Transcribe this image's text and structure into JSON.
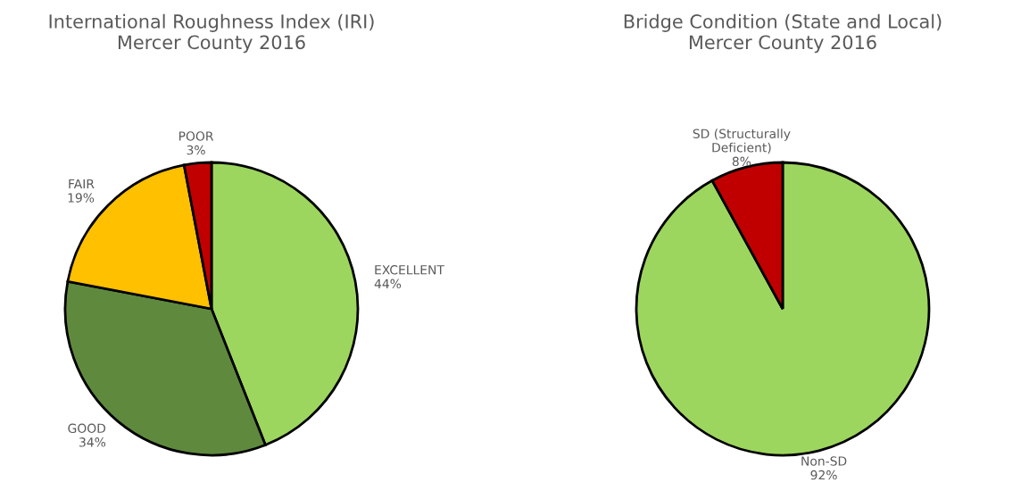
{
  "chart_data": [
    {
      "type": "pie",
      "title": "International Roughness Index (IRI)\nMercer County 2016",
      "categories": [
        "EXCELLENT",
        "GOOD",
        "FAIR",
        "POOR"
      ],
      "values": [
        44,
        34,
        19,
        3
      ],
      "value_labels": [
        "44%",
        "34%",
        "19%",
        "3%"
      ],
      "colors": [
        "#9dd65e",
        "#5f8a3e",
        "#ffc000",
        "#c00000"
      ]
    },
    {
      "type": "pie",
      "title": "Bridge Condition (State and Local)\nMercer County 2016",
      "categories": [
        "Non-SD",
        "SD (Structurally\nDeficient)"
      ],
      "values": [
        92,
        8
      ],
      "value_labels": [
        "92%",
        "8%"
      ],
      "colors": [
        "#9dd65e",
        "#c00000"
      ]
    }
  ]
}
